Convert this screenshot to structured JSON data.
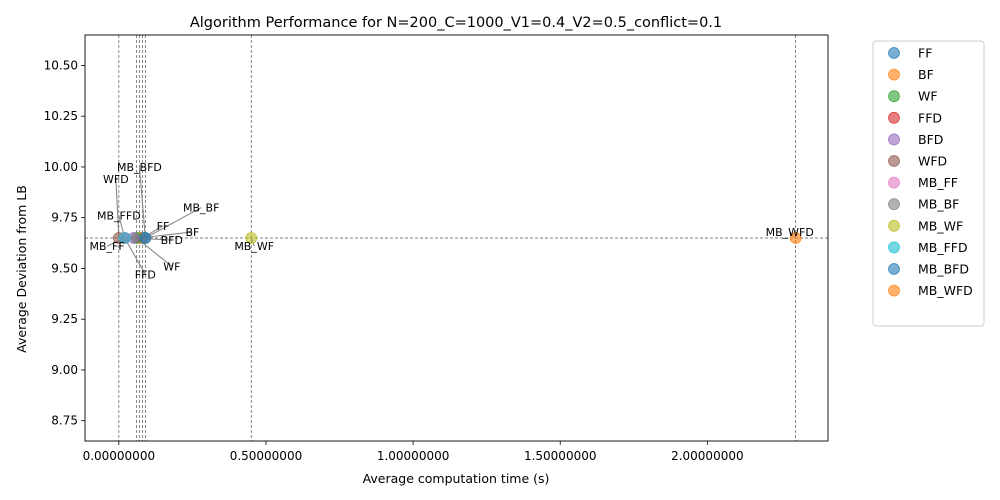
{
  "chart_data": {
    "type": "scatter",
    "title": "Algorithm Performance for N=200_C=1000_V1=0.4_V2=0.5_conflict=0.1",
    "xlabel": "Average computation time (s)",
    "ylabel": "Average Deviation from LB",
    "xlim": [
      -0.115,
      2.41
    ],
    "ylim": [
      8.65,
      10.65
    ],
    "x_ticks": [
      0.0,
      0.5,
      1.0,
      1.5,
      2.0
    ],
    "x_tick_labels": [
      "0.00000000",
      "0.50000000",
      "1.00000000",
      "1.50000000",
      "2.00000000"
    ],
    "y_ticks": [
      8.75,
      9.0,
      9.25,
      9.5,
      9.75,
      10.0,
      10.25,
      10.5
    ],
    "y_tick_labels": [
      "8.75",
      "9.00",
      "9.25",
      "9.50",
      "9.75",
      "10.00",
      "10.25",
      "10.50"
    ],
    "legend_position": "outside-right",
    "reference_line_y": 9.65,
    "reference_lines_x": [
      0.0,
      0.06,
      0.07,
      0.08,
      0.09,
      0.45,
      2.3
    ],
    "series": [
      {
        "name": "FF",
        "color": "#1f77b4",
        "x": 0.08,
        "y": 9.65,
        "label_x": 0.15,
        "label_y": 9.71
      },
      {
        "name": "BF",
        "color": "#ff7f0e",
        "x": 0.07,
        "y": 9.65,
        "label_x": 0.25,
        "label_y": 9.68
      },
      {
        "name": "WF",
        "color": "#2ca02c",
        "x": 0.06,
        "y": 9.65,
        "label_x": 0.18,
        "label_y": 9.51
      },
      {
        "name": "FFD",
        "color": "#d62728",
        "x": 0.02,
        "y": 9.65,
        "label_x": 0.09,
        "label_y": 9.47
      },
      {
        "name": "BFD",
        "color": "#9467bd",
        "x": 0.05,
        "y": 9.65,
        "label_x": 0.18,
        "label_y": 9.64
      },
      {
        "name": "WFD",
        "color": "#8c564b",
        "x": 0.0,
        "y": 9.65,
        "label_x": -0.01,
        "label_y": 9.94
      },
      {
        "name": "MB_FF",
        "color": "#e377c2",
        "x": 0.02,
        "y": 9.65,
        "label_x": -0.04,
        "label_y": 9.61
      },
      {
        "name": "MB_BF",
        "color": "#7f7f7f",
        "x": 0.09,
        "y": 9.65,
        "label_x": 0.28,
        "label_y": 9.8
      },
      {
        "name": "MB_WF",
        "color": "#bcbd22",
        "x": 0.45,
        "y": 9.65,
        "label_x": 0.46,
        "label_y": 9.61
      },
      {
        "name": "MB_FFD",
        "color": "#17becf",
        "x": 0.02,
        "y": 9.65,
        "label_x": 0.0,
        "label_y": 9.76
      },
      {
        "name": "MB_BFD",
        "color": "#1f77b4",
        "x": 0.09,
        "y": 9.65,
        "label_x": 0.07,
        "label_y": 10.0
      },
      {
        "name": "MB_WFD",
        "color": "#ff7f0e",
        "x": 2.3,
        "y": 9.65,
        "label_x": 2.28,
        "label_y": 9.68
      }
    ]
  }
}
